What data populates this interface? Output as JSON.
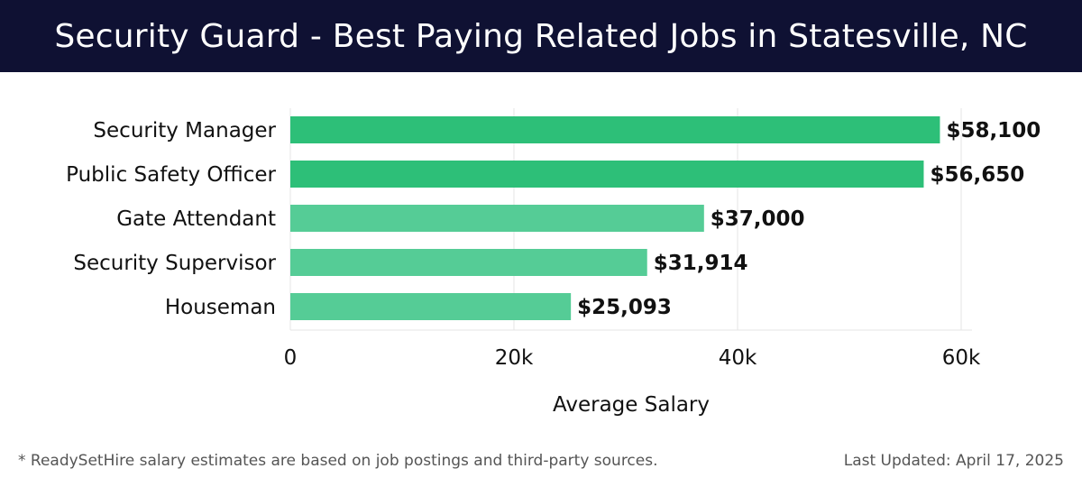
{
  "header": {
    "title": "Security Guard - Best Paying Related Jobs in Statesville, NC"
  },
  "chart_data": {
    "type": "bar",
    "orientation": "horizontal",
    "categories": [
      "Security Manager",
      "Public Safety Officer",
      "Gate Attendant",
      "Security Supervisor",
      "Houseman"
    ],
    "values": [
      58100,
      56650,
      37000,
      31914,
      25093
    ],
    "data_labels": [
      "$58,100",
      "$56,650",
      "$37,000",
      "$31,914",
      "$25,093"
    ],
    "xlabel": "Average Salary",
    "xlim": [
      0,
      60000
    ],
    "xticks": [
      0,
      20000,
      40000,
      60000
    ],
    "xtick_labels": [
      "0",
      "20k",
      "40k",
      "60k"
    ],
    "grid": true,
    "colors": {
      "bar_top": "#2dbf78",
      "bar_other": "#55cc96",
      "grid": "#e4e4e4",
      "header_bg": "#0f1133"
    }
  },
  "footer": {
    "note": "* ReadySetHire salary estimates are based on job postings and third-party sources.",
    "updated": "Last Updated: April 17, 2025"
  }
}
